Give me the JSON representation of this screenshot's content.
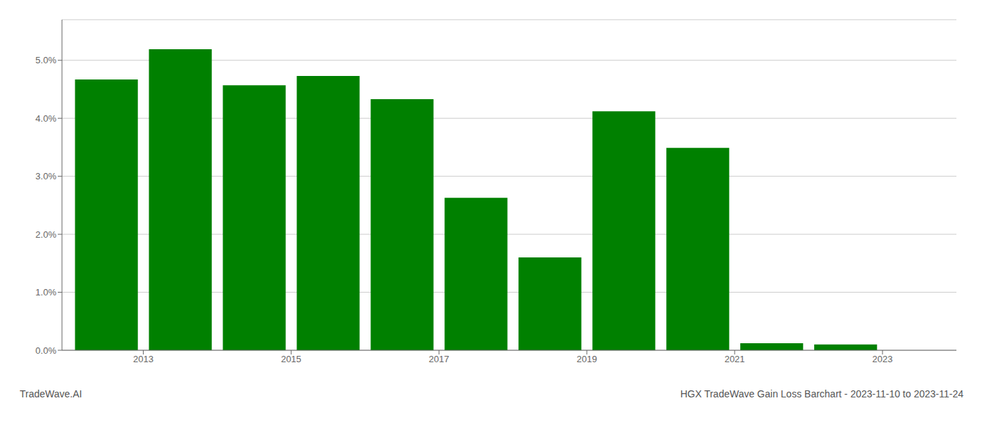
{
  "chart_data": {
    "type": "bar",
    "x": [
      2013,
      2014,
      2015,
      2016,
      2017,
      2018,
      2019,
      2020,
      2021,
      2022,
      2023
    ],
    "values": [
      0.0467,
      0.0519,
      0.0457,
      0.0473,
      0.0433,
      0.0263,
      0.016,
      0.0412,
      0.0349,
      0.0012,
      0.001
    ],
    "color": "#008000",
    "xlim": [
      2012.4,
      2024.5
    ],
    "xticks": [
      {
        "value": 2013.5,
        "label": "2013"
      },
      {
        "value": 2015.5,
        "label": "2015"
      },
      {
        "value": 2017.5,
        "label": "2017"
      },
      {
        "value": 2019.5,
        "label": "2019"
      },
      {
        "value": 2021.5,
        "label": "2021"
      },
      {
        "value": 2023.5,
        "label": "2023"
      }
    ],
    "ylim": [
      0,
      0.057
    ],
    "yticks": [
      {
        "value": 0.0,
        "label": "0.0%"
      },
      {
        "value": 0.01,
        "label": "1.0%"
      },
      {
        "value": 0.02,
        "label": "2.0%"
      },
      {
        "value": 0.03,
        "label": "3.0%"
      },
      {
        "value": 0.04,
        "label": "4.0%"
      },
      {
        "value": 0.05,
        "label": "5.0%"
      }
    ],
    "grid": "y",
    "annotations": [
      "TradeWave.AI",
      "HGX TradeWave Gain Loss Barchart - 2023-11-10 to 2023-11-24"
    ]
  }
}
